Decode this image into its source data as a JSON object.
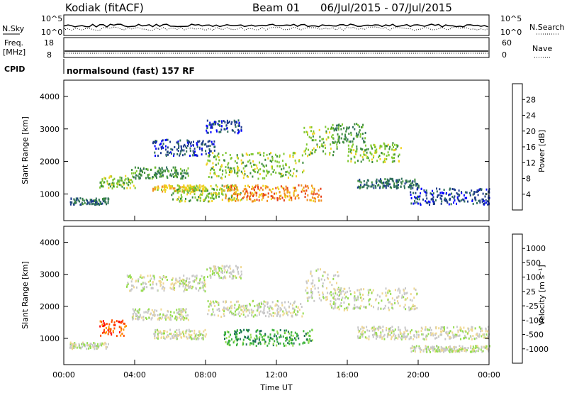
{
  "header": {
    "station": "Kodiak (fitACF)",
    "beam": "Beam 01",
    "date_range": "06/Jul/2015 - 07/Jul/2015"
  },
  "sky_panel": {
    "left_label": "N.Sky",
    "right_label": "N.Search",
    "ticks_left": [
      "10^5",
      "10^0"
    ],
    "ticks_right": [
      "10^5",
      "10^0"
    ]
  },
  "freq_panel": {
    "left_label": "Freq.",
    "left_unit": "[MHz]",
    "right_label": "Nave",
    "ticks_left": [
      "18",
      "8"
    ],
    "ticks_right": [
      "60",
      "0"
    ]
  },
  "cpid": {
    "label": "CPID",
    "mode": "normalsound (fast) 157 RF"
  },
  "colors": {
    "power": [
      "#0000ff",
      "#1e3c8c",
      "#2e6e5a",
      "#3c8c3c",
      "#7fc832",
      "#f0d21e",
      "#f08c1e",
      "#e63c14",
      "#e60000"
    ],
    "velocity": [
      "#ff0000",
      "#ff5000",
      "#ff9600",
      "#f0d890",
      "#c8c8c8",
      "#96dc50",
      "#3cb43c",
      "#1e6e5a",
      "#2040c8"
    ]
  },
  "chart_data": [
    {
      "type": "heatmap",
      "name": "power",
      "ylabel": "Slant Range [km]",
      "y_ticks": [
        "1000",
        "2000",
        "3000",
        "4000"
      ],
      "ylim": [
        180,
        4500
      ],
      "x_ticks": [
        "00:00",
        "04:00",
        "08:00",
        "12:00",
        "16:00",
        "20:00",
        "00:00"
      ],
      "xlim": [
        0,
        24
      ],
      "colorbar_label": "Power [dB]",
      "colorbar_ticks": [
        "4",
        "8",
        "12",
        "16",
        "20",
        "24",
        "28"
      ],
      "range_limits": [
        0,
        32
      ],
      "echo_bands": [
        {
          "t0": 0.3,
          "t1": 2.5,
          "r0": 700,
          "r1": 900,
          "p": 6
        },
        {
          "t0": 2.0,
          "t1": 4.0,
          "r0": 1200,
          "r1": 1600,
          "p": 14
        },
        {
          "t0": 3.8,
          "t1": 7.0,
          "r0": 1500,
          "r1": 1850,
          "p": 10
        },
        {
          "t0": 5.0,
          "t1": 8.0,
          "r0": 1100,
          "r1": 1300,
          "p": 18
        },
        {
          "t0": 6.0,
          "t1": 10.0,
          "r0": 800,
          "r1": 1300,
          "p": 16
        },
        {
          "t0": 8.0,
          "t1": 13.5,
          "r0": 1500,
          "r1": 2300,
          "p": 17
        },
        {
          "t0": 9.0,
          "t1": 14.5,
          "r0": 800,
          "r1": 1300,
          "p": 25
        },
        {
          "t0": 13.5,
          "t1": 15.5,
          "r0": 2200,
          "r1": 3100,
          "p": 14
        },
        {
          "t0": 15.0,
          "t1": 17.0,
          "r0": 2600,
          "r1": 3200,
          "p": 12
        },
        {
          "t0": 16.0,
          "t1": 19.0,
          "r0": 2000,
          "r1": 2600,
          "p": 15
        },
        {
          "t0": 16.5,
          "t1": 20.0,
          "r0": 1200,
          "r1": 1500,
          "p": 9
        },
        {
          "t0": 19.5,
          "t1": 24.0,
          "r0": 700,
          "r1": 1200,
          "p": 5
        },
        {
          "t0": 5.0,
          "t1": 8.5,
          "r0": 2200,
          "r1": 2700,
          "p": 4
        },
        {
          "t0": 8.0,
          "t1": 10.0,
          "r0": 2900,
          "r1": 3300,
          "p": 5
        }
      ]
    },
    {
      "type": "heatmap",
      "name": "velocity",
      "ylabel": "Slant Range [km]",
      "y_ticks": [
        "1000",
        "2000",
        "3000",
        "4000"
      ],
      "ylim": [
        180,
        4500
      ],
      "x_ticks": [
        "00:00",
        "04:00",
        "08:00",
        "12:00",
        "16:00",
        "20:00",
        "00:00"
      ],
      "xlim": [
        0,
        24
      ],
      "xlabel": "Time UT",
      "colorbar_label": "Velocity [m s⁻¹]",
      "colorbar_ticks": [
        "-1000",
        "-500",
        "-100",
        "-25",
        "25",
        "100",
        "500",
        "1000"
      ],
      "echo_bands": [
        {
          "t0": 0.3,
          "t1": 2.5,
          "r0": 700,
          "r1": 900,
          "v": 0
        },
        {
          "t0": 2.0,
          "t1": 3.5,
          "r0": 1100,
          "r1": 1600,
          "v": -300
        },
        {
          "t0": 3.8,
          "t1": 7.0,
          "r0": 1600,
          "r1": 1950,
          "v": 0
        },
        {
          "t0": 5.0,
          "t1": 8.0,
          "r0": 1000,
          "r1": 1300,
          "v": 0
        },
        {
          "t0": 8.0,
          "t1": 13.5,
          "r0": 1700,
          "r1": 2200,
          "v": 0
        },
        {
          "t0": 9.0,
          "t1": 14.0,
          "r0": 800,
          "r1": 1300,
          "v": 120
        },
        {
          "t0": 13.5,
          "t1": 15.5,
          "r0": 2200,
          "r1": 3200,
          "v": 0
        },
        {
          "t0": 15.0,
          "t1": 20.0,
          "r0": 1900,
          "r1": 2600,
          "v": 0
        },
        {
          "t0": 16.5,
          "t1": 24.0,
          "r0": 1000,
          "r1": 1400,
          "v": 0
        },
        {
          "t0": 19.5,
          "t1": 24.0,
          "r0": 600,
          "r1": 800,
          "v": 0
        },
        {
          "t0": 3.5,
          "t1": 8.0,
          "r0": 2500,
          "r1": 3000,
          "v": 0
        },
        {
          "t0": 8.0,
          "t1": 10.0,
          "r0": 2900,
          "r1": 3300,
          "v": 0
        }
      ]
    }
  ]
}
